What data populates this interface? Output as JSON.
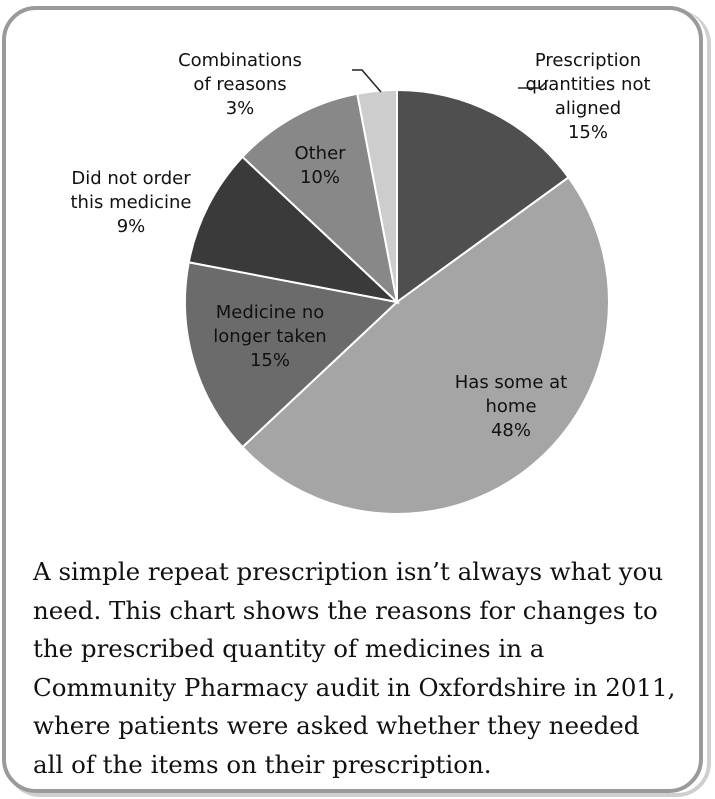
{
  "chart_data": {
    "type": "pie",
    "title": "",
    "slices": [
      {
        "label_lines": [
          "Prescription",
          "quantities not",
          "aligned"
        ],
        "value": 15,
        "value_label": "15%",
        "color": "#4f4f4f"
      },
      {
        "label_lines": [
          "Has some at",
          "home"
        ],
        "value": 48,
        "value_label": "48%",
        "color": "#a5a5a5"
      },
      {
        "label_lines": [
          "Medicine no",
          "longer taken"
        ],
        "value": 15,
        "value_label": "15%",
        "color": "#6b6b6b"
      },
      {
        "label_lines": [
          "Did not order",
          "this medicine"
        ],
        "value": 9,
        "value_label": "9%",
        "color": "#3a3a3a"
      },
      {
        "label_lines": [
          "Other"
        ],
        "value": 10,
        "value_label": "10%",
        "color": "#888888"
      },
      {
        "label_lines": [
          "Combinations",
          "of reasons"
        ],
        "value": 3,
        "value_label": "3%",
        "color": "#cdcdcd"
      }
    ],
    "start_angle": "12 o'clock",
    "direction": "clockwise",
    "legend": "none"
  },
  "caption_lines": [
    "A simple repeat prescription isn’t always what you",
    "need. This chart shows the reasons for changes to",
    "the prescribed quantity of medicines in a",
    "Community Pharmacy audit in Oxfordshire in 2011,",
    "where patients were asked whether they needed",
    "all of the items on their prescription."
  ]
}
